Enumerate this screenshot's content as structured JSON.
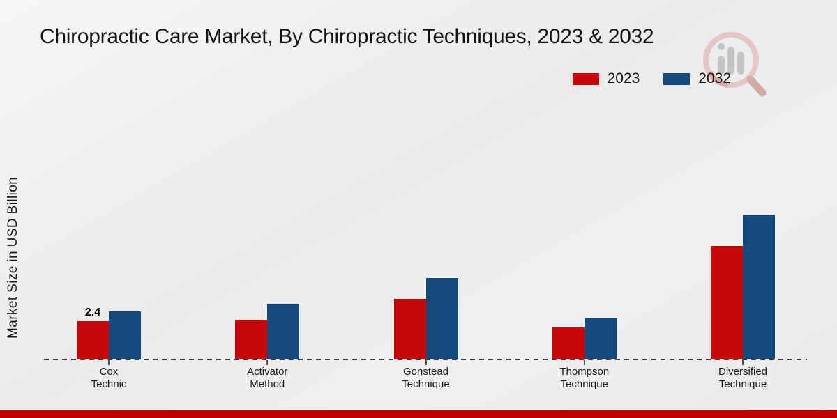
{
  "title": "Chiropractic Care Market, By Chiropractic Techniques, 2023 & 2032",
  "y_axis_label": "Market Size in USD Billion",
  "legend": {
    "items": [
      {
        "label": "2023",
        "color": "#c80808"
      },
      {
        "label": "2032",
        "color": "#14497d"
      }
    ]
  },
  "colors": {
    "series_2023": "#c80808",
    "series_2032": "#14497d",
    "bottom_banner": "#c00000",
    "axis_line": "#3a3a3a",
    "text": "#1a1a1a"
  },
  "chart_data": {
    "type": "bar",
    "categories": [
      "Cox Technic",
      "Activator Method",
      "Gonstead Technique",
      "Thompson Technique",
      "Diversified Technique"
    ],
    "series": [
      {
        "name": "2023",
        "color": "#c80808",
        "values": [
          2.4,
          2.5,
          3.8,
          2.0,
          7.1
        ]
      },
      {
        "name": "2032",
        "color": "#14497d",
        "values": [
          3.0,
          3.5,
          5.1,
          2.6,
          9.1
        ]
      }
    ],
    "title": "Chiropractic Care Market, By Chiropractic Techniques, 2023 & 2032",
    "xlabel": "",
    "ylabel": "Market Size in USD Billion",
    "ylim": [
      0,
      10
    ],
    "grid": false,
    "legend_position": "top-right",
    "x_axis_style": "dashed",
    "data_labels": [
      {
        "series": "2023",
        "category": "Cox Technic",
        "text": "2.4"
      }
    ]
  }
}
